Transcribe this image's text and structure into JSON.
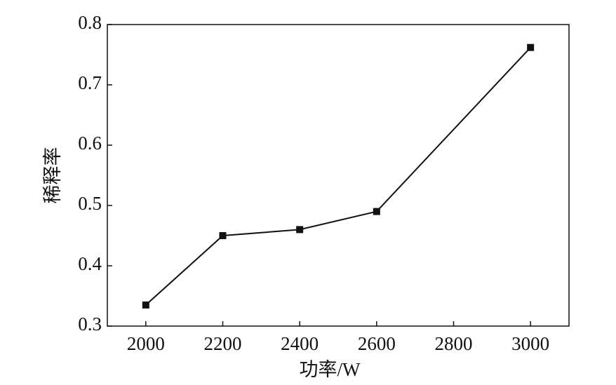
{
  "chart_data": {
    "type": "line",
    "x_label": "功率/W",
    "y_label": "稀释率",
    "x": [
      2000,
      2200,
      2400,
      2600,
      3000
    ],
    "series": [
      {
        "name": "稀释率",
        "color": "#111111",
        "values": [
          0.335,
          0.45,
          0.46,
          0.49,
          0.762
        ]
      }
    ],
    "xlim": [
      1900,
      3100
    ],
    "xticks": [
      2000,
      2200,
      2400,
      2600,
      2800,
      3000
    ],
    "ylim": [
      0.3,
      0.8
    ],
    "yticks": [
      0.3,
      0.4,
      0.5,
      0.6,
      0.7,
      0.8
    ],
    "grid": false,
    "legend": false
  }
}
